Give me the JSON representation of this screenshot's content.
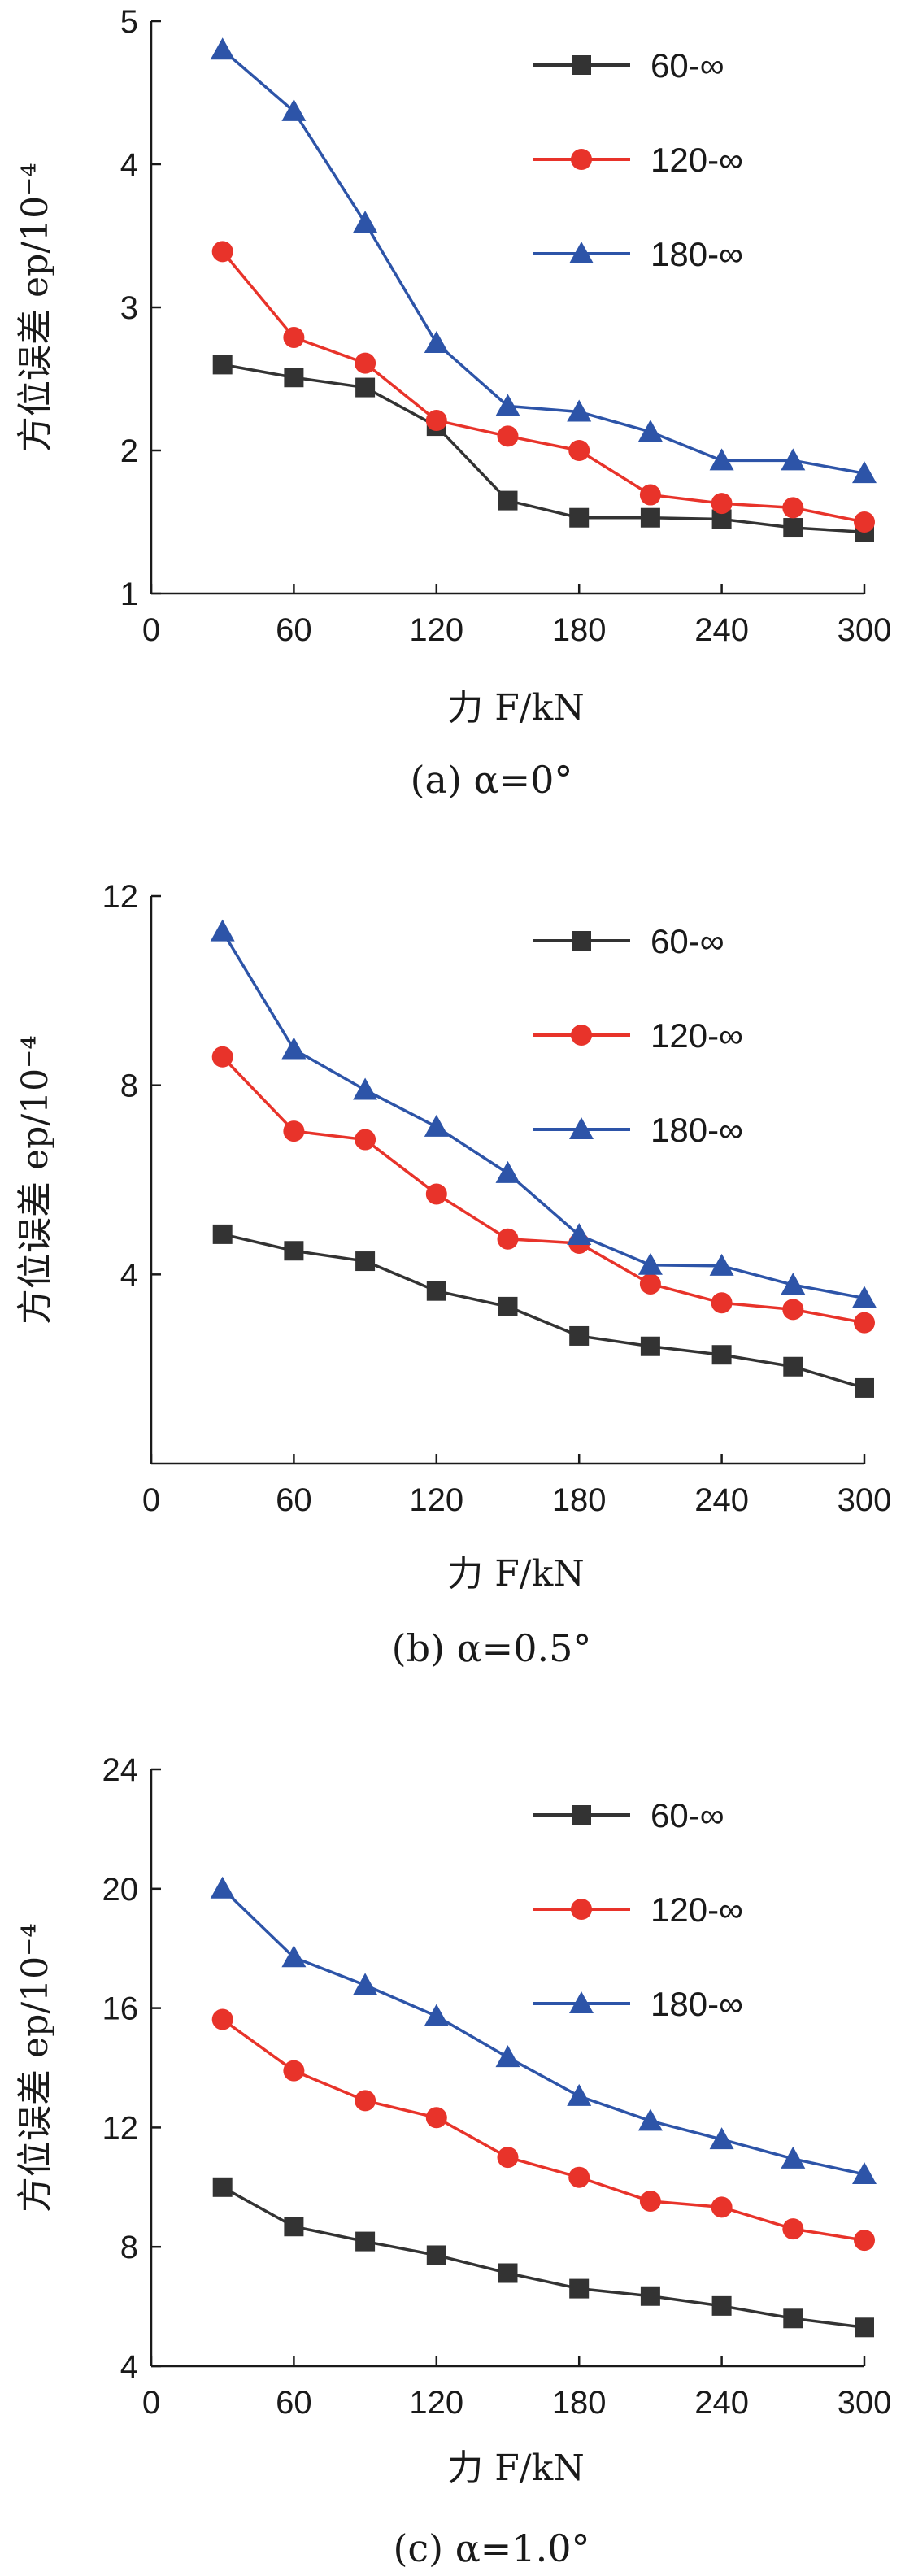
{
  "colors": {
    "series": [
      "#333333",
      "#e8332a",
      "#2d54a8"
    ],
    "axis": "#1a1a1a"
  },
  "chart_data": [
    {
      "type": "line",
      "panel": "a",
      "caption": "(a) α=0°",
      "xlabel": "力 F/kN",
      "ylabel": "方位误差 ep/10⁻⁴",
      "xlim": [
        0,
        300
      ],
      "ylim": [
        1,
        5
      ],
      "xticks": [
        0,
        60,
        120,
        180,
        240,
        300
      ],
      "yticks": [
        1,
        2,
        3,
        4,
        5
      ],
      "legend_position": "top-right",
      "x": [
        30,
        60,
        90,
        120,
        150,
        180,
        210,
        240,
        270,
        300
      ],
      "series": [
        {
          "name": "60-∞",
          "marker": "square",
          "values": [
            2.6,
            2.51,
            2.44,
            2.17,
            1.65,
            1.53,
            1.53,
            1.52,
            1.46,
            1.43
          ]
        },
        {
          "name": "120-∞",
          "marker": "circle",
          "values": [
            3.39,
            2.79,
            2.61,
            2.21,
            2.1,
            2.0,
            1.69,
            1.63,
            1.6,
            1.5
          ]
        },
        {
          "name": "180-∞",
          "marker": "triangle",
          "values": [
            4.8,
            4.37,
            3.59,
            2.75,
            2.31,
            2.27,
            2.13,
            1.93,
            1.93,
            1.84
          ]
        }
      ]
    },
    {
      "type": "line",
      "panel": "b",
      "caption": "(b) α=0.5°",
      "xlabel": "力 F/kN",
      "ylabel": "方位误差 ep/10⁻⁴",
      "xlim": [
        0,
        300
      ],
      "ylim": [
        0,
        12
      ],
      "xticks": [
        0,
        60,
        120,
        180,
        240,
        300
      ],
      "yticks": [
        4,
        8,
        12
      ],
      "legend_position": "top-right",
      "x": [
        30,
        60,
        90,
        120,
        150,
        180,
        210,
        240,
        270,
        300
      ],
      "series": [
        {
          "name": "60-∞",
          "marker": "square",
          "values": [
            4.85,
            4.5,
            4.28,
            3.65,
            3.32,
            2.7,
            2.48,
            2.3,
            2.05,
            1.6
          ]
        },
        {
          "name": "120-∞",
          "marker": "circle",
          "values": [
            8.6,
            7.03,
            6.85,
            5.7,
            4.75,
            4.66,
            3.8,
            3.4,
            3.26,
            2.98
          ]
        },
        {
          "name": "180-∞",
          "marker": "triangle",
          "values": [
            11.25,
            8.76,
            7.9,
            7.12,
            6.14,
            4.83,
            4.2,
            4.18,
            3.78,
            3.5
          ]
        }
      ]
    },
    {
      "type": "line",
      "panel": "c",
      "caption": "(c) α=1.0°",
      "xlabel": "力 F/kN",
      "ylabel": "方位误差 ep/10⁻⁴",
      "xlim": [
        0,
        300
      ],
      "ylim": [
        4,
        24
      ],
      "xticks": [
        0,
        60,
        120,
        180,
        240,
        300
      ],
      "yticks": [
        4,
        8,
        12,
        16,
        20,
        24
      ],
      "legend_position": "top-right",
      "x": [
        30,
        60,
        90,
        120,
        150,
        180,
        210,
        240,
        270,
        300
      ],
      "series": [
        {
          "name": "60-∞",
          "marker": "square",
          "values": [
            10.0,
            8.68,
            8.18,
            7.72,
            7.12,
            6.6,
            6.35,
            6.02,
            5.6,
            5.3
          ]
        },
        {
          "name": "120-∞",
          "marker": "circle",
          "values": [
            15.62,
            13.9,
            12.9,
            12.33,
            11.0,
            10.33,
            9.53,
            9.33,
            8.6,
            8.22
          ]
        },
        {
          "name": "180-∞",
          "marker": "triangle",
          "values": [
            20.0,
            17.7,
            16.77,
            15.73,
            14.35,
            13.05,
            12.22,
            11.6,
            10.95,
            10.43
          ]
        }
      ]
    }
  ]
}
